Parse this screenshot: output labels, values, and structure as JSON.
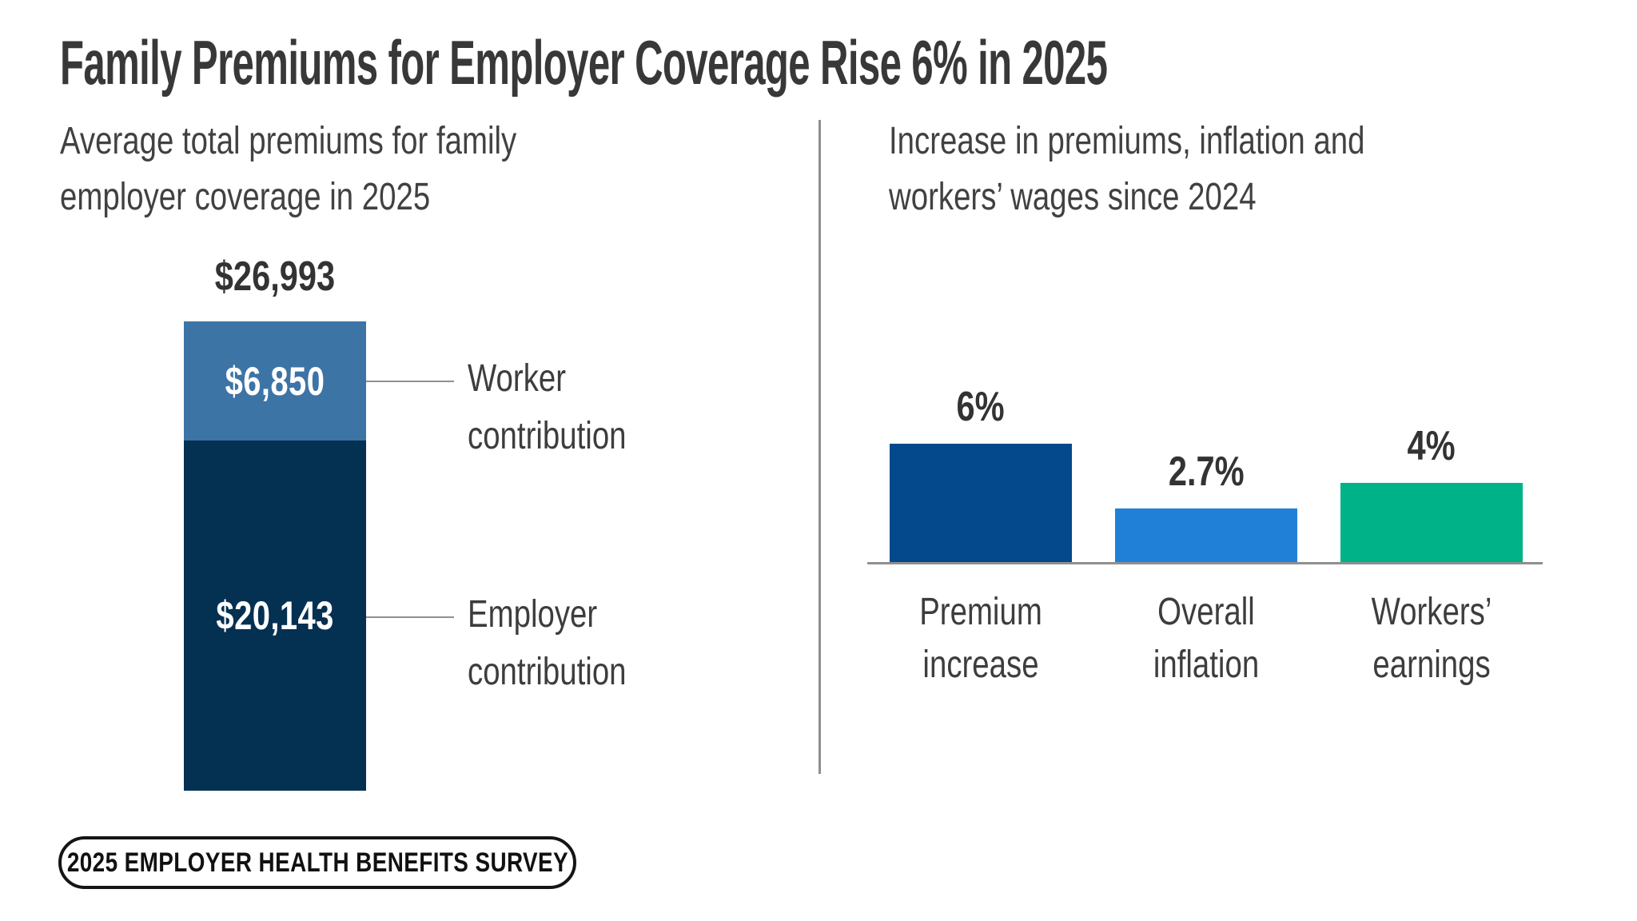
{
  "title": "Family Premiums for Employer Coverage Rise 6% in 2025",
  "left_panel": {
    "subtitle": "Average total premiums for family employer coverage in 2025"
  },
  "right_panel": {
    "subtitle": "Increase in premiums, inflation and workers’ wages since 2024"
  },
  "badge": {
    "label": "2025 EMPLOYER HEALTH BENEFITS SURVEY"
  },
  "colors": {
    "title_text": "#383838",
    "body_text": "#3d3d3d",
    "worker_blue": "#3d74a6",
    "employer_navy": "#043052",
    "premium_blue": "#04498c",
    "inflation_blue": "#2080d8",
    "earnings_green": "#00b287",
    "line_gray": "#8f8f8f",
    "badge_black": "#151515"
  },
  "chart_data": [
    {
      "type": "bar",
      "subtype": "stacked-single-column",
      "title": "Average total premiums for family employer coverage in 2025",
      "total_label": "$26,993",
      "total_value": 26993,
      "unit": "USD",
      "segments": [
        {
          "name": "Worker contribution",
          "value": 6850,
          "value_label": "$6,850",
          "color": "#3d74a6"
        },
        {
          "name": "Employer contribution",
          "value": 20143,
          "value_label": "$20,143",
          "color": "#043052"
        }
      ]
    },
    {
      "type": "bar",
      "title": "Increase in premiums, inflation and workers’ wages since 2024",
      "categories": [
        "Premium increase",
        "Overall inflation",
        "Workers’ earnings"
      ],
      "values": [
        6,
        2.7,
        4
      ],
      "value_labels": [
        "6%",
        "2.7%",
        "4%"
      ],
      "colors": [
        "#04498c",
        "#2080d8",
        "#00b287"
      ],
      "unit": "percent",
      "ylim": [
        0,
        6.5
      ],
      "grid": false,
      "legend": false,
      "baseline_color": "#8f8f8f"
    }
  ]
}
